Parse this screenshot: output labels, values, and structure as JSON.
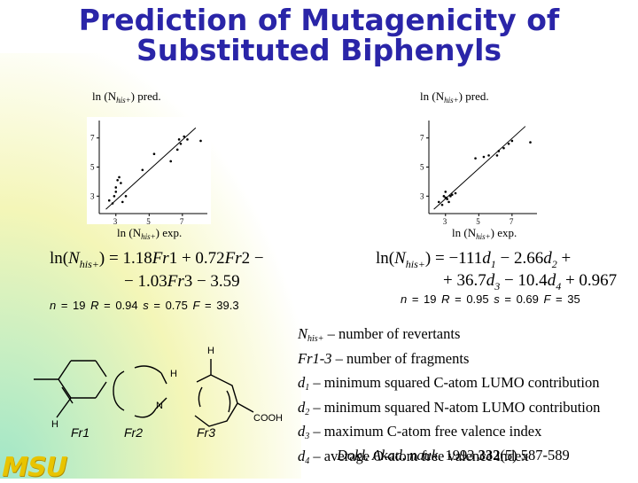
{
  "title_line1": "Prediction of Mutagenicity of",
  "title_line2": "Substituted Biphenyls",
  "plots": [
    {
      "ylabel_main": "ln (N",
      "ylabel_sub": "his+",
      "ylabel_tail": ") pred.",
      "xlabel_main": "ln (N",
      "xlabel_sub": "his+",
      "xlabel_tail": ") exp.",
      "yticks": [
        "7",
        "5",
        "3"
      ],
      "xticks": [
        "3",
        "5",
        "7"
      ]
    },
    {
      "ylabel_main": "ln (N",
      "ylabel_sub": "his+",
      "ylabel_tail": ") pred.",
      "xlabel_main": "ln (N",
      "xlabel_sub": "his+",
      "xlabel_tail": ") exp.",
      "yticks": [
        "7",
        "5",
        "3"
      ],
      "xticks": [
        "3",
        "5",
        "7"
      ]
    }
  ],
  "chart_data": [
    {
      "type": "scatter",
      "xlim": [
        2,
        8.5
      ],
      "ylim": [
        1.8,
        8.2
      ],
      "fit_line": [
        [
          2.4,
          2.1
        ],
        [
          7.8,
          7.7
        ]
      ],
      "points": [
        [
          2.6,
          2.7
        ],
        [
          2.8,
          2.5
        ],
        [
          2.9,
          3.0
        ],
        [
          3.0,
          3.6
        ],
        [
          3.1,
          4.1
        ],
        [
          3.2,
          4.3
        ],
        [
          3.0,
          3.3
        ],
        [
          3.3,
          3.9
        ],
        [
          3.4,
          2.6
        ],
        [
          3.6,
          3.0
        ],
        [
          4.6,
          4.8
        ],
        [
          5.3,
          5.9
        ],
        [
          6.3,
          5.4
        ],
        [
          6.7,
          6.2
        ],
        [
          6.8,
          6.9
        ],
        [
          6.9,
          6.6
        ],
        [
          7.1,
          7.1
        ],
        [
          7.3,
          6.9
        ],
        [
          8.1,
          6.8
        ]
      ]
    },
    {
      "type": "scatter",
      "xlim": [
        2,
        8.5
      ],
      "ylim": [
        1.8,
        8.2
      ],
      "fit_line": [
        [
          2.3,
          2.1
        ],
        [
          7.8,
          7.8
        ]
      ],
      "points": [
        [
          2.6,
          2.6
        ],
        [
          2.8,
          2.4
        ],
        [
          2.9,
          3.0
        ],
        [
          3.0,
          3.3
        ],
        [
          3.1,
          2.8
        ],
        [
          3.2,
          2.6
        ],
        [
          3.0,
          2.9
        ],
        [
          3.3,
          3.0
        ],
        [
          3.4,
          3.1
        ],
        [
          3.6,
          3.2
        ],
        [
          4.8,
          5.6
        ],
        [
          5.3,
          5.7
        ],
        [
          5.6,
          5.8
        ],
        [
          6.1,
          5.8
        ],
        [
          6.2,
          6.1
        ],
        [
          6.5,
          6.3
        ],
        [
          6.8,
          6.6
        ],
        [
          7.0,
          6.8
        ],
        [
          8.1,
          6.7
        ]
      ]
    }
  ],
  "equation1": {
    "lhs_pre": "ln(",
    "lhs_var": "N",
    "lhs_sub": "his+",
    "lhs_post": ") = 1.18",
    "t1": "Fr",
    "t1n": "1",
    "op1": " + 0.72",
    "t2": "Fr",
    "t2n": "2",
    "op2": " −",
    "line2a": "− 1.03",
    "t3": "Fr",
    "t3n": "3",
    "line2b": " − 3.59"
  },
  "equation2": {
    "lhs_pre": "ln(",
    "lhs_var": "N",
    "lhs_sub": "his+",
    "lhs_post": ") = −111",
    "d": "d",
    "d1": "1",
    "op1": " − 2.66",
    "d2": "2",
    "op2": " +",
    "line2a": "+ 36.7",
    "d3": "3",
    "op3": " − 10.4",
    "d4": "4",
    "line2b": " + 0.967"
  },
  "stats1": {
    "n": "n",
    "n_val": " = 19  ",
    "r": "R",
    "r_val": " = 0.94  ",
    "s": "s",
    "s_val": " = 0.75  ",
    "f": "F",
    "f_val": " = 39.3"
  },
  "stats2": {
    "n": "n",
    "n_val": " = 19  ",
    "r": "R",
    "r_val": " = 0.95  ",
    "s": "s",
    "s_val": " = 0.69  ",
    "f": "F",
    "f_val": " = 35"
  },
  "fragments": {
    "fr1": "Fr1",
    "fr2": "Fr2",
    "fr3": "Fr3",
    "h": "H",
    "n": "N",
    "cooh": "COOH"
  },
  "definitions": [
    {
      "var": "N",
      "sub": "his+",
      "text": " – number of revertants"
    },
    {
      "var": "Fr1-3",
      "sub": "",
      "text": " – number of fragments"
    },
    {
      "var": "d",
      "sub": "1",
      "text": " – minimum squared C-atom LUMO contribution"
    },
    {
      "var": "d",
      "sub": "2",
      "text": " – minimum squared N-atom LUMO contribution"
    },
    {
      "var": "d",
      "sub": "3",
      "text": " – maximum C-atom free valence index"
    },
    {
      "var": "d",
      "sub": "4",
      "text": " – average O-atom free valence index"
    }
  ],
  "reference": {
    "journal": "Dokl. Akad. nauk.",
    "year": " 1993 ",
    "volume": "332",
    "issue_pages": "(5) 587-589"
  },
  "logo": "MSU",
  "colors": {
    "title": "#2a25a8",
    "logo": "#e8c400"
  }
}
